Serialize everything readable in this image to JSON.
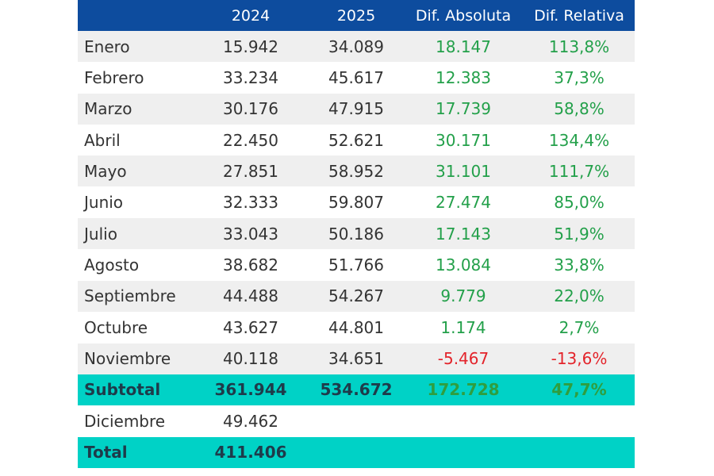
{
  "table": {
    "columns": [
      "2024",
      "2025",
      "Dif. Absoluta",
      "Dif. Relativa"
    ],
    "rows": [
      [
        "Enero",
        "15.942",
        "34.089",
        "18.147",
        "113,8%"
      ],
      [
        "Febrero",
        "33.234",
        "45.617",
        "12.383",
        "37,3%"
      ],
      [
        "Marzo",
        "30.176",
        "47.915",
        "17.739",
        "58,8%"
      ],
      [
        "Abril",
        "22.450",
        "52.621",
        "30.171",
        "134,4%"
      ],
      [
        "Mayo",
        "27.851",
        "58.952",
        "31.101",
        "111,7%"
      ],
      [
        "Junio",
        "32.333",
        "59.807",
        "27.474",
        "85,0%"
      ],
      [
        "Julio",
        "33.043",
        "50.186",
        "17.143",
        "51,9%"
      ],
      [
        "Agosto",
        "38.682",
        "51.766",
        "13.084",
        "33,8%"
      ],
      [
        "Septiembre",
        "44.488",
        "54.267",
        "9.779",
        "22,0%"
      ],
      [
        "Octubre",
        "43.627",
        "44.801",
        "1.174",
        "2,7%"
      ],
      [
        "Noviembre",
        "40.118",
        "34.651",
        "-5.467",
        "-13,6%"
      ]
    ],
    "subtotal_row": [
      "Subtotal",
      "361.944",
      "534.672",
      "172.728",
      "47,7%"
    ],
    "december_row": [
      "Diciembre",
      "49.462"
    ],
    "total_row": [
      "Total",
      "411.406"
    ]
  }
}
